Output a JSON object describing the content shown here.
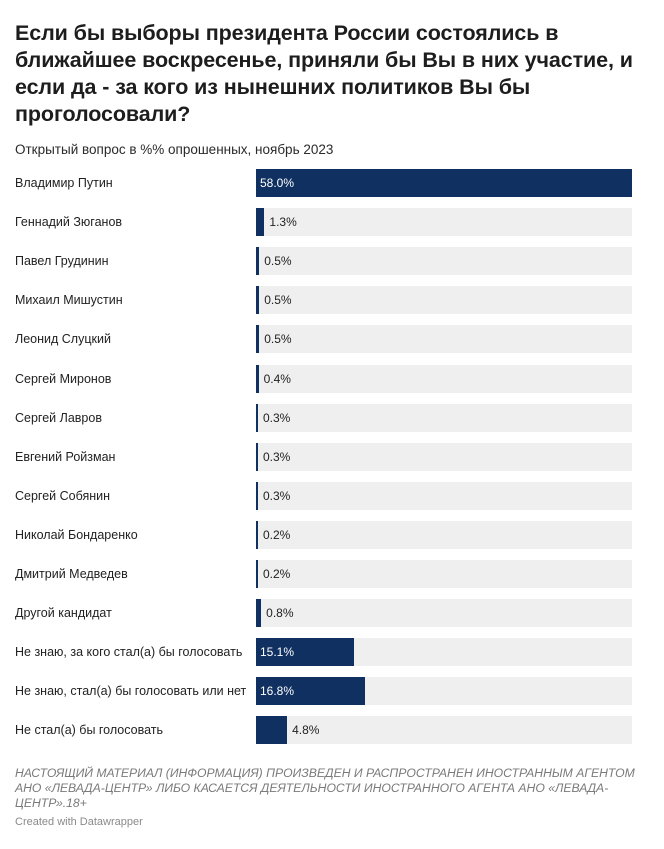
{
  "title": "Если бы выборы президента России состоялись в ближайшее воскресенье, приняли бы Вы в них участие, и если да - за кого из нынешних политиков Вы бы проголосовали?",
  "subtitle": "Открытый вопрос в %% опрошенных, ноябрь 2023",
  "chart_data": {
    "type": "bar",
    "orientation": "horizontal",
    "title": "Если бы выборы президента России состоялись в ближайшее воскресенье, приняли бы Вы в них участие, и если да - за кого из нынешних политиков Вы бы проголосовали?",
    "categories": [
      "Владимир Путин",
      "Геннадий Зюганов",
      "Павел Грудинин",
      "Михаил Мишустин",
      "Леонид Слуцкий",
      "Сергей Миронов",
      "Сергей Лавров",
      "Евгений Ройзман",
      "Сергей Собянин",
      "Николай Бондаренко",
      "Дмитрий Медведев",
      "Другой кандидат",
      "Не знаю, за кого стал(а) бы голосовать",
      "Не знаю, стал(а) бы голосовать или нет",
      "Не стал(а) бы голосовать"
    ],
    "values": [
      58.0,
      1.3,
      0.5,
      0.5,
      0.5,
      0.4,
      0.3,
      0.3,
      0.3,
      0.2,
      0.2,
      0.8,
      15.1,
      16.8,
      4.8
    ],
    "value_labels": [
      "58.0%",
      "1.3%",
      "0.5%",
      "0.5%",
      "0.5%",
      "0.4%",
      "0.3%",
      "0.3%",
      "0.3%",
      "0.2%",
      "0.2%",
      "0.8%",
      "15.1%",
      "16.8%",
      "4.8%"
    ],
    "xlim": [
      0,
      58
    ],
    "unit": "%",
    "bar_color": "#0f3060",
    "track_color": "#efefef"
  },
  "footer": {
    "note": "НАСТОЯЩИЙ МАТЕРИАЛ (ИНФОРМАЦИЯ) ПРОИЗВЕДЕН И РАСПРОСТРАНЕН ИНОСТРАННЫМ АГЕНТОМ АНО «ЛЕВАДА-ЦЕНТР» ЛИБО КАСАЕТСЯ ДЕЯТЕЛЬНОСТИ ИНОСТРАННОГО АГЕНТА АНО «ЛЕВАДА-ЦЕНТР».18+",
    "credit": "Created with Datawrapper"
  }
}
